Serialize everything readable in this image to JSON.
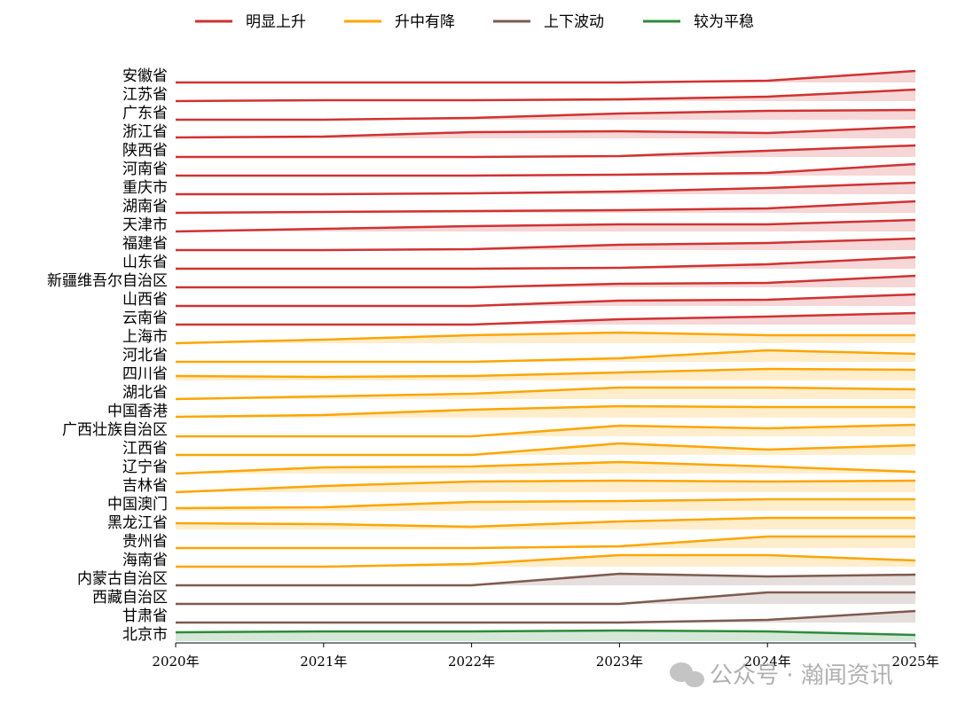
{
  "chart_data": {
    "type": "ridgeline",
    "categories": [
      "2020年",
      "2021年",
      "2022年",
      "2023年",
      "2024年",
      "2025年"
    ],
    "legend": [
      {
        "name": "明显上升",
        "color": "#d03232"
      },
      {
        "name": "升中有降",
        "color": "#ffa500"
      },
      {
        "name": "上下波动",
        "color": "#7f5a4f"
      },
      {
        "name": "较为平稳",
        "color": "#2e8b3a"
      }
    ],
    "series": [
      {
        "name": "安徽省",
        "color": "#d03232",
        "values": [
          0,
          0,
          0,
          0,
          2,
          13
        ]
      },
      {
        "name": "江苏省",
        "color": "#d03232",
        "values": [
          0,
          1,
          1,
          2,
          5,
          13
        ]
      },
      {
        "name": "广东省",
        "color": "#d03232",
        "values": [
          0,
          0,
          2,
          7,
          10,
          11
        ]
      },
      {
        "name": "浙江省",
        "color": "#d03232",
        "values": [
          1,
          2,
          7,
          8,
          6,
          13
        ]
      },
      {
        "name": "陕西省",
        "color": "#d03232",
        "values": [
          0,
          0,
          0,
          1,
          7,
          13
        ]
      },
      {
        "name": "河南省",
        "color": "#d03232",
        "values": [
          0,
          0,
          0,
          1,
          3,
          13
        ]
      },
      {
        "name": "重庆市",
        "color": "#d03232",
        "values": [
          0,
          0,
          1,
          3,
          7,
          13
        ]
      },
      {
        "name": "湖南省",
        "color": "#d03232",
        "values": [
          0,
          1,
          2,
          3,
          5,
          13
        ]
      },
      {
        "name": "天津市",
        "color": "#d03232",
        "values": [
          0,
          3,
          6,
          8,
          8,
          13
        ]
      },
      {
        "name": "福建省",
        "color": "#d03232",
        "values": [
          0,
          0,
          1,
          6,
          8,
          13
        ]
      },
      {
        "name": "山东省",
        "color": "#d03232",
        "values": [
          0,
          0,
          0,
          1,
          5,
          13
        ]
      },
      {
        "name": "新疆维吾尔自治区",
        "color": "#d03232",
        "values": [
          0,
          0,
          0,
          4,
          5,
          13
        ]
      },
      {
        "name": "山西省",
        "color": "#d03232",
        "values": [
          0,
          0,
          0,
          6,
          7,
          13
        ]
      },
      {
        "name": "云南省",
        "color": "#d03232",
        "values": [
          0,
          0,
          0,
          6,
          9,
          13
        ]
      },
      {
        "name": "上海市",
        "color": "#ffa500",
        "values": [
          0,
          4,
          9,
          12,
          9,
          9
        ]
      },
      {
        "name": "河北省",
        "color": "#ffa500",
        "values": [
          0,
          0,
          0,
          4,
          13,
          9
        ]
      },
      {
        "name": "四川省",
        "color": "#ffa500",
        "values": [
          5,
          4,
          5,
          9,
          13,
          12
        ]
      },
      {
        "name": "湖北省",
        "color": "#ffa500",
        "values": [
          0,
          3,
          6,
          13,
          13,
          11
        ]
      },
      {
        "name": "中国香港",
        "color": "#ffa500",
        "values": [
          1,
          3,
          9,
          13,
          12,
          12
        ]
      },
      {
        "name": "广西壮族自治区",
        "color": "#ffa500",
        "values": [
          0,
          0,
          0,
          12,
          9,
          13
        ]
      },
      {
        "name": "江西省",
        "color": "#ffa500",
        "values": [
          0,
          0,
          0,
          13,
          6,
          11
        ]
      },
      {
        "name": "辽宁省",
        "color": "#ffa500",
        "values": [
          0,
          7,
          8,
          13,
          8,
          2
        ]
      },
      {
        "name": "吉林省",
        "color": "#ffa500",
        "values": [
          0,
          7,
          12,
          13,
          12,
          13
        ]
      },
      {
        "name": "中国澳门",
        "color": "#ffa500",
        "values": [
          3,
          4,
          10,
          11,
          13,
          13
        ]
      },
      {
        "name": "黑龙江省",
        "color": "#ffa500",
        "values": [
          7,
          6,
          3,
          9,
          13,
          13
        ]
      },
      {
        "name": "贵州省",
        "color": "#ffa500",
        "values": [
          0,
          0,
          0,
          2,
          13,
          13
        ]
      },
      {
        "name": "海南省",
        "color": "#ffa500",
        "values": [
          0,
          0,
          3,
          13,
          13,
          7
        ]
      },
      {
        "name": "内蒙古自治区",
        "color": "#7f5a4f",
        "values": [
          0,
          0,
          0,
          13,
          10,
          12
        ]
      },
      {
        "name": "西藏自治区",
        "color": "#7f5a4f",
        "values": [
          0,
          0,
          0,
          0,
          13,
          13
        ]
      },
      {
        "name": "甘肃省",
        "color": "#7f5a4f",
        "values": [
          0,
          0,
          0,
          0,
          3,
          13
        ]
      },
      {
        "name": "北京市",
        "color": "#2e8b3a",
        "values": [
          10,
          11,
          11,
          12,
          11,
          7
        ]
      }
    ],
    "watermark": "公众号 · 瀚闻资讯"
  }
}
